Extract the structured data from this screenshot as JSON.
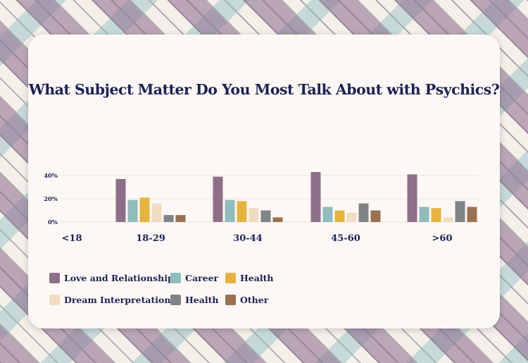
{
  "chart_data": {
    "type": "bar",
    "title": "What Subject Matter Do You Most Talk About with Psychics?",
    "categories": [
      "<18",
      "18-29",
      "30-44",
      "45-60",
      ">60"
    ],
    "yticks": [
      "40%",
      "20%",
      "0%"
    ],
    "ylim": [
      0,
      45
    ],
    "grid": true,
    "legend_position": "bottom",
    "series": [
      {
        "name": "Love and Relationship",
        "color": "#8d7088",
        "values": [
          0,
          37,
          39,
          43,
          41
        ]
      },
      {
        "name": "Career",
        "color": "#8fbcbc",
        "values": [
          0,
          19,
          19,
          13,
          13
        ]
      },
      {
        "name": "Health",
        "color": "#e6b33f",
        "values": [
          0,
          21,
          18,
          10,
          12
        ]
      },
      {
        "name": "Dream Interpretation",
        "color": "#f1dcc2",
        "values": [
          0,
          16,
          12,
          8,
          4
        ]
      },
      {
        "name": "Health",
        "color": "#7f8487",
        "values": [
          0,
          6,
          10,
          16,
          18
        ]
      },
      {
        "name": "Other",
        "color": "#9a7150",
        "values": [
          0,
          6,
          4,
          10,
          13
        ]
      }
    ]
  }
}
